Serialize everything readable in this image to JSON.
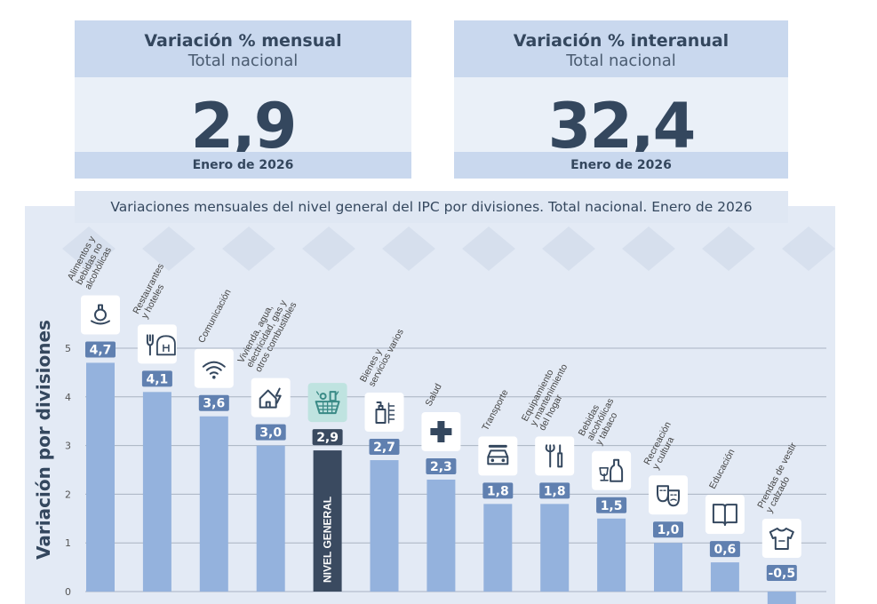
{
  "cards": [
    {
      "title": "Variación % mensual",
      "subtitle": "Total nacional",
      "value": "2,9",
      "footer": "Enero de 2026"
    },
    {
      "title": "Variación % interanual",
      "subtitle": "Total nacional",
      "value": "32,4",
      "footer": "Enero de 2026"
    }
  ],
  "chart_data": {
    "type": "bar",
    "title": "Variaciones mensuales del nivel general del IPC por divisiones. Total nacional. Enero de 2026",
    "ylabel": "Variación por divisiones",
    "ylim": [
      -0.25,
      5.2
    ],
    "yticks": [
      0,
      1,
      2,
      3,
      4,
      5
    ],
    "grid": true,
    "categories": [
      "Alimentos y bebidas no alcohólicas",
      "Restaurantes y hoteles",
      "Comunicación",
      "Vivienda, agua, electricidad, gas y otros combustibles",
      "NIVEL GENERAL",
      "Bienes y servicios varios",
      "Salud",
      "Transporte",
      "Equipamiento y mantenimiento del hogar",
      "Bebidas alcohólicas y tabaco",
      "Recreación y cultura",
      "Educación",
      "Prendas de vestir y calzado"
    ],
    "category_lines": [
      [
        "Alimentos y",
        "bebidas no",
        "alcohólicas"
      ],
      [
        "Restaurantes",
        "y hoteles"
      ],
      [
        "Comunicación"
      ],
      [
        "Vivienda, agua,",
        "electricidad, gas y",
        "otros combustibles"
      ],
      [],
      [
        "Bienes y",
        "servicios varios"
      ],
      [
        "Salud"
      ],
      [
        "Transporte"
      ],
      [
        "Equipamiento",
        "y mantenimiento",
        "del hogar"
      ],
      [
        "Bebidas",
        "alcohólicas",
        "y tabaco"
      ],
      [
        "Recreación",
        "y cultura"
      ],
      [
        "Educación"
      ],
      [
        "Prendas de vestir",
        "y calzado"
      ]
    ],
    "values": [
      4.7,
      4.1,
      3.6,
      3.0,
      2.9,
      2.7,
      2.3,
      1.8,
      1.8,
      1.5,
      1.0,
      0.6,
      -0.5
    ],
    "value_labels": [
      "4,7",
      "4,1",
      "3,6",
      "3,0",
      "2,9",
      "2,7",
      "2,3",
      "1,8",
      "1,8",
      "1,5",
      "1,0",
      "0,6",
      "-0,5"
    ],
    "icons": [
      "food-icon",
      "restaurant-icon",
      "wifi-icon",
      "house-energy-icon",
      "basket-icon",
      "personal-care-icon",
      "health-cross-icon",
      "car-icon",
      "tools-icon",
      "bottle-icon",
      "theater-masks-icon",
      "book-icon",
      "shirt-icon"
    ],
    "highlight_index": 4,
    "bar_inner_label": "NIVEL GENERAL",
    "colors": {
      "bar": "#94b2dd",
      "highlight": "#3a4a60",
      "label_box": "#6080b0",
      "label_box_highlight": "#3a4a60",
      "icon_highlight_bg": "#bfe3e0"
    }
  }
}
